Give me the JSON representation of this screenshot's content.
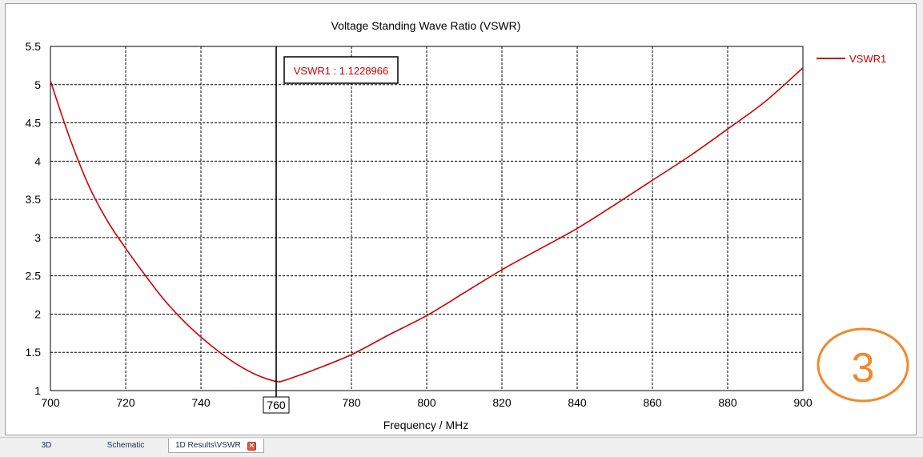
{
  "chart_data": {
    "type": "line",
    "title": "Voltage Standing Wave Ratio (VSWR)",
    "xlabel": "Frequency / MHz",
    "ylabel": "",
    "xlim": [
      700,
      900
    ],
    "ylim": [
      1,
      5.5
    ],
    "xticks": [
      "700",
      "720",
      "740",
      "760",
      "780",
      "800",
      "820",
      "840",
      "860",
      "880",
      "900"
    ],
    "yticks": [
      "5.5",
      "5",
      "4.5",
      "4",
      "3.5",
      "3",
      "2.5",
      "2",
      "1.5",
      "1"
    ],
    "grid": true,
    "legend_position": "right",
    "series": [
      {
        "name": "VSWR1",
        "color": "#cc0000",
        "x": [
          700,
          705,
          710,
          715,
          720,
          725,
          730,
          735,
          740,
          745,
          750,
          755,
          760,
          762,
          765,
          770,
          780,
          790,
          800,
          810,
          820,
          830,
          840,
          850,
          860,
          870,
          880,
          890,
          900
        ],
        "y": [
          5.05,
          4.32,
          3.7,
          3.23,
          2.86,
          2.52,
          2.2,
          1.93,
          1.7,
          1.5,
          1.33,
          1.2,
          1.12,
          1.13,
          1.18,
          1.27,
          1.47,
          1.73,
          1.98,
          2.28,
          2.58,
          2.85,
          3.12,
          3.43,
          3.75,
          4.07,
          4.42,
          4.78,
          5.22
        ]
      }
    ],
    "marker": {
      "x": 760,
      "x_label": "760",
      "label": "VSWR1 : 1.1228966"
    }
  },
  "annotation_number": "3",
  "colors": {
    "curve": "#cc0000",
    "annotation": "#f0892e",
    "marker_line": "#000000"
  },
  "tabs": [
    {
      "label": "3D"
    },
    {
      "label": "Schematic"
    },
    {
      "label": "1D Results\\VSWR",
      "active": true,
      "close_icon": "close-icon"
    }
  ]
}
